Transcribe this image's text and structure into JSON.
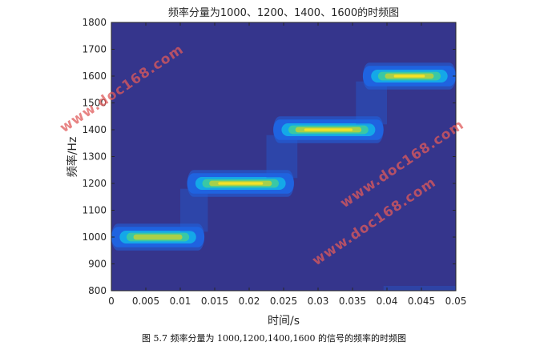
{
  "chart_data": {
    "type": "heatmap",
    "title": "频率分量为1000、1200、1400、1600的时频图",
    "xlabel": "时间/s",
    "ylabel": "频率/Hz",
    "xlim": [
      0,
      0.05
    ],
    "ylim": [
      800,
      1800
    ],
    "xticks": [
      "0",
      "0.005",
      "0.01",
      "0.015",
      "0.02",
      "0.025",
      "0.03",
      "0.035",
      "0.04",
      "0.045",
      "0.05"
    ],
    "yticks": [
      "800",
      "900",
      "1000",
      "1100",
      "1200",
      "1300",
      "1400",
      "1500",
      "1600",
      "1700",
      "1800"
    ],
    "background_color": "#35358c",
    "colormap": [
      "#35358c",
      "#1f63e0",
      "#14a8e8",
      "#39c8a6",
      "#a8d04a",
      "#f5e226"
    ],
    "bands": [
      {
        "freq": 1000,
        "t_start": 0.0,
        "t_end": 0.0135,
        "peak_time": 0.006,
        "intensity": 0.8
      },
      {
        "freq": 1200,
        "t_start": 0.011,
        "t_end": 0.0265,
        "peak_time": 0.019,
        "intensity": 1.0
      },
      {
        "freq": 1400,
        "t_start": 0.0235,
        "t_end": 0.0395,
        "peak_time": 0.031,
        "intensity": 1.0
      },
      {
        "freq": 1600,
        "t_start": 0.0365,
        "t_end": 0.05,
        "peak_time": 0.044,
        "intensity": 0.9
      }
    ]
  },
  "caption": "图 5.7 频率分量为 1000,1200,1400,1600 的信号的频率的时频图",
  "watermarks": [
    "www.doc168.com",
    "www.doc168.com",
    "www.doc168.com"
  ]
}
